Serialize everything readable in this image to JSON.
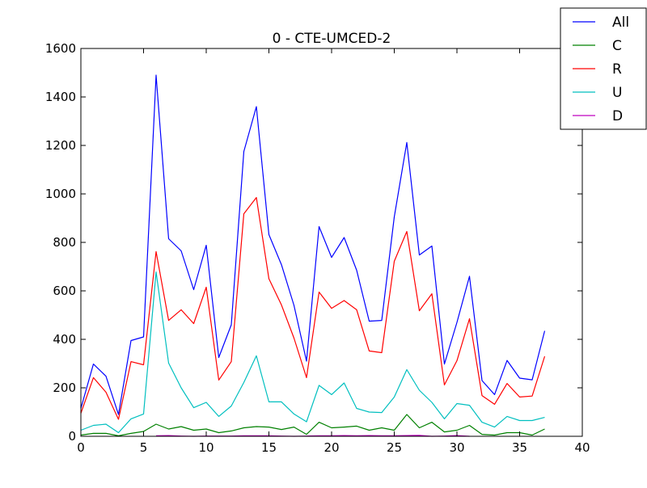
{
  "chart_data": {
    "type": "line",
    "title": "0 - CTE-UMCED-2",
    "xlabel": "",
    "ylabel": "",
    "xlim": [
      0,
      40
    ],
    "ylim": [
      0,
      1600
    ],
    "xticks": [
      0,
      5,
      10,
      15,
      20,
      25,
      30,
      35,
      40
    ],
    "yticks": [
      0,
      200,
      400,
      600,
      800,
      1000,
      1200,
      1400,
      1600
    ],
    "grid": false,
    "legend_position": "top-right",
    "series": [
      {
        "name": "All",
        "color": "#0000ff",
        "x": [
          0,
          1,
          2,
          3,
          4,
          5,
          6,
          7,
          8,
          9,
          10,
          11,
          12,
          13,
          14,
          15,
          16,
          17,
          18,
          19,
          20,
          21,
          22,
          23,
          24,
          25,
          26,
          27,
          28,
          29,
          30,
          31,
          32,
          33,
          34,
          35,
          36,
          37
        ],
        "y": [
          115,
          298,
          248,
          90,
          395,
          410,
          1490,
          815,
          765,
          605,
          788,
          325,
          460,
          1175,
          1360,
          832,
          708,
          540,
          310,
          865,
          738,
          820,
          685,
          475,
          478,
          905,
          1212,
          748,
          785,
          298,
          470,
          660,
          230,
          172,
          313,
          240,
          233,
          435
        ]
      },
      {
        "name": "C",
        "color": "#008000",
        "x": [
          0,
          1,
          2,
          3,
          4,
          5,
          6,
          7,
          8,
          9,
          10,
          11,
          12,
          13,
          14,
          15,
          16,
          17,
          18,
          19,
          20,
          21,
          22,
          23,
          24,
          25,
          26,
          27,
          28,
          29,
          30,
          31,
          32,
          33,
          34,
          35,
          36,
          37
        ],
        "y": [
          5,
          12,
          12,
          2,
          12,
          20,
          50,
          30,
          40,
          25,
          30,
          15,
          22,
          35,
          40,
          38,
          28,
          38,
          8,
          58,
          35,
          38,
          42,
          25,
          35,
          25,
          90,
          35,
          58,
          18,
          25,
          45,
          8,
          5,
          15,
          15,
          5,
          30
        ]
      },
      {
        "name": "R",
        "color": "#ff0000",
        "x": [
          0,
          1,
          2,
          3,
          4,
          5,
          6,
          7,
          8,
          9,
          10,
          11,
          12,
          13,
          14,
          15,
          16,
          17,
          18,
          19,
          20,
          21,
          22,
          23,
          24,
          25,
          26,
          27,
          28,
          29,
          30,
          31,
          32,
          33,
          34,
          35,
          36,
          37
        ],
        "y": [
          95,
          242,
          182,
          70,
          308,
          295,
          762,
          478,
          522,
          465,
          615,
          232,
          308,
          918,
          985,
          650,
          542,
          405,
          242,
          595,
          528,
          560,
          522,
          352,
          345,
          722,
          845,
          518,
          588,
          212,
          312,
          485,
          168,
          132,
          218,
          162,
          166,
          330
        ]
      },
      {
        "name": "U",
        "color": "#00bfbf",
        "x": [
          0,
          1,
          2,
          3,
          4,
          5,
          6,
          7,
          8,
          9,
          10,
          11,
          12,
          13,
          14,
          15,
          16,
          17,
          18,
          19,
          20,
          21,
          22,
          23,
          24,
          25,
          26,
          27,
          28,
          29,
          30,
          31,
          32,
          33,
          34,
          35,
          36,
          37
        ],
        "y": [
          25,
          45,
          50,
          15,
          72,
          92,
          678,
          302,
          200,
          118,
          140,
          82,
          125,
          222,
          332,
          142,
          142,
          92,
          60,
          210,
          172,
          220,
          115,
          100,
          98,
          162,
          275,
          190,
          140,
          72,
          135,
          128,
          58,
          38,
          82,
          65,
          65,
          78
        ]
      },
      {
        "name": "D",
        "color": "#bf00bf",
        "x": [
          6,
          7,
          8,
          9,
          10,
          11,
          12,
          13,
          14,
          15,
          16,
          17,
          18,
          19,
          20,
          21,
          22,
          23,
          24,
          25,
          26,
          27,
          28,
          29,
          30,
          31
        ],
        "y": [
          2,
          3,
          1,
          0,
          1,
          1,
          1,
          2,
          2,
          2,
          1,
          0,
          1,
          2,
          2,
          3,
          2,
          3,
          2,
          2,
          3,
          4,
          0,
          1,
          3,
          0
        ]
      }
    ]
  }
}
